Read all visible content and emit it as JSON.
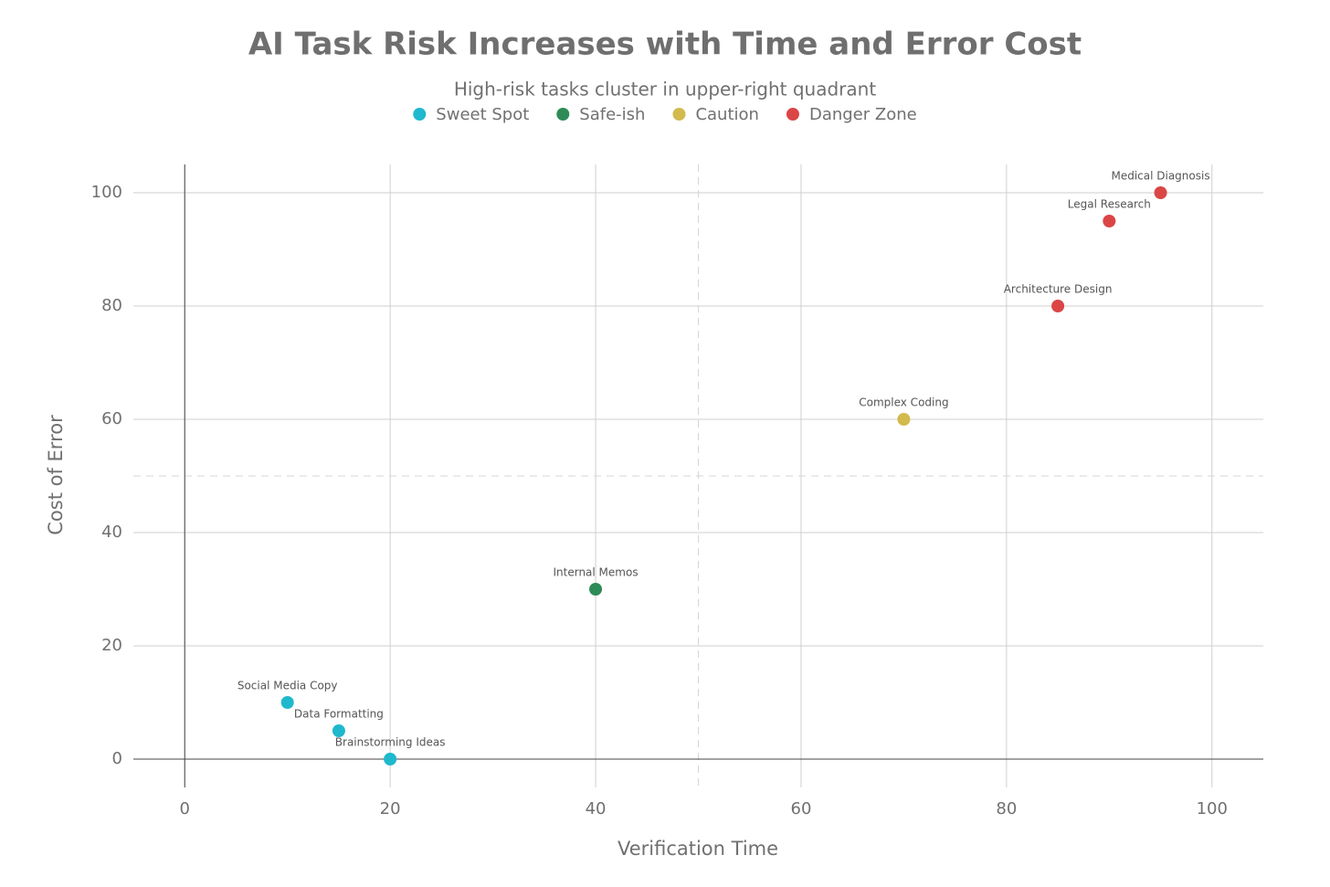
{
  "chart_data": {
    "type": "scatter",
    "title": "AI Task Risk Increases with Time and Error Cost",
    "subtitle": "High-risk tasks cluster in upper-right quadrant",
    "x_label": "Verification Time",
    "y_label": "Cost of Error",
    "xlim": [
      -5,
      105
    ],
    "ylim": [
      -5,
      105
    ],
    "xticks": [
      0,
      20,
      40,
      60,
      80,
      100
    ],
    "yticks": [
      0,
      20,
      40,
      60,
      80,
      100
    ],
    "grid": true,
    "legend": "top",
    "reference_lines": {
      "x": 50,
      "y": 50
    },
    "series": [
      {
        "name": "Sweet Spot",
        "color": "#1fb8cd",
        "x": [
          10,
          15,
          20
        ],
        "values": [
          10,
          5,
          0
        ],
        "labels": [
          "Social Media Copy",
          "Data Formatting",
          "Brainstorming Ideas"
        ]
      },
      {
        "name": "Safe-ish",
        "color": "#2e8b57",
        "x": [
          40
        ],
        "values": [
          30
        ],
        "labels": [
          "Internal Memos"
        ]
      },
      {
        "name": "Caution",
        "color": "#d2ba4c",
        "x": [
          70
        ],
        "values": [
          60
        ],
        "labels": [
          "Complex Coding"
        ]
      },
      {
        "name": "Danger Zone",
        "color": "#db4545",
        "x": [
          85,
          90,
          95
        ],
        "values": [
          80,
          95,
          100
        ],
        "labels": [
          "Architecture Design",
          "Legal Research",
          "Medical Diagnosis"
        ]
      }
    ]
  }
}
